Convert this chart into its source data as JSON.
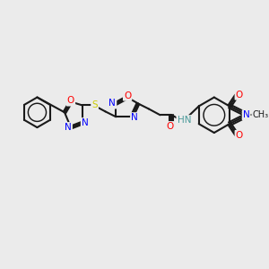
{
  "bg_color": "#ebebeb",
  "bond_color": "#1a1a1a",
  "bond_width": 1.5,
  "atom_colors": {
    "N": "#0000ff",
    "O": "#ff0000",
    "S": "#cccc00",
    "C": "#1a1a1a",
    "H": "#4a9a9a"
  },
  "font_size": 7.5,
  "title": ""
}
